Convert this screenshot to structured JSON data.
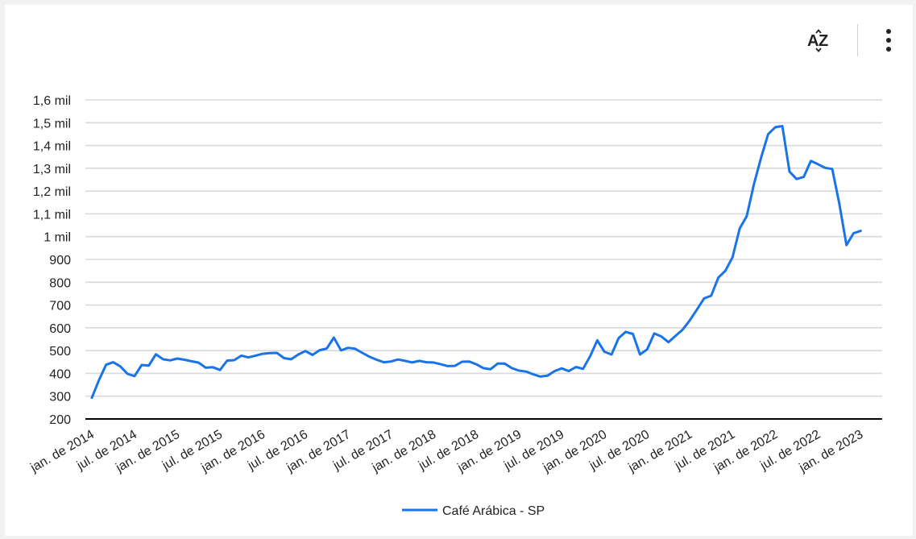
{
  "toolbar": {
    "sort_icon": "sort-az-icon",
    "menu_icon": "more-vertical-icon",
    "sort_label_a": "A",
    "sort_label_z": "Z"
  },
  "colors": {
    "series": "#1a73e8",
    "grid": "#d9d9d9",
    "axis": "#000000",
    "text": "#222222"
  },
  "chart_data": {
    "type": "line",
    "title": "",
    "xlabel": "",
    "ylabel": "",
    "ylim": [
      200,
      1600
    ],
    "yticks": [
      200,
      300,
      400,
      500,
      600,
      700,
      800,
      900,
      1000,
      1100,
      1200,
      1300,
      1400,
      1500,
      1600
    ],
    "ytick_labels": [
      "200",
      "300",
      "400",
      "500",
      "600",
      "700",
      "800",
      "900",
      "1 mil",
      "1,1 mil",
      "1,2 mil",
      "1,3 mil",
      "1,4 mil",
      "1,5 mil",
      "1,6 mil"
    ],
    "xtick_labels": [
      "jan. de 2014",
      "jul. de 2014",
      "jan. de 2015",
      "jul. de 2015",
      "jan. de 2016",
      "jul. de 2016",
      "jan. de 2017",
      "jul. de 2017",
      "jan. de 2018",
      "jul. de 2018",
      "jan. de 2019",
      "jul. de 2019",
      "jan. de 2020",
      "jul. de 2020",
      "jan. de 2021",
      "jul. de 2021",
      "jan. de 2022",
      "jul. de 2022",
      "jan. de 2023"
    ],
    "x_start": "2014-01",
    "x_end": "2023-03",
    "grid": true,
    "legend_position": "bottom",
    "series": [
      {
        "name": "Café Arábica - SP",
        "values": [
          293,
          370,
          438,
          449,
          431,
          398,
          388,
          437,
          434,
          484,
          462,
          457,
          465,
          460,
          453,
          447,
          425,
          427,
          415,
          456,
          458,
          478,
          470,
          478,
          486,
          489,
          490,
          467,
          462,
          483,
          498,
          481,
          502,
          509,
          557,
          501,
          512,
          508,
          490,
          473,
          460,
          449,
          452,
          461,
          455,
          448,
          455,
          449,
          448,
          440,
          432,
          433,
          451,
          452,
          440,
          423,
          418,
          443,
          443,
          423,
          412,
          408,
          396,
          386,
          390,
          410,
          422,
          410,
          428,
          420,
          475,
          545,
          495,
          483,
          555,
          582,
          573,
          483,
          505,
          575,
          562,
          537,
          565,
          592,
          633,
          680,
          729,
          741,
          820,
          850,
          910,
          1035,
          1090,
          1230,
          1345,
          1450,
          1480,
          1485,
          1285,
          1253,
          1262,
          1332,
          1318,
          1302,
          1297,
          1145,
          963,
          1015,
          1025
        ]
      }
    ]
  }
}
